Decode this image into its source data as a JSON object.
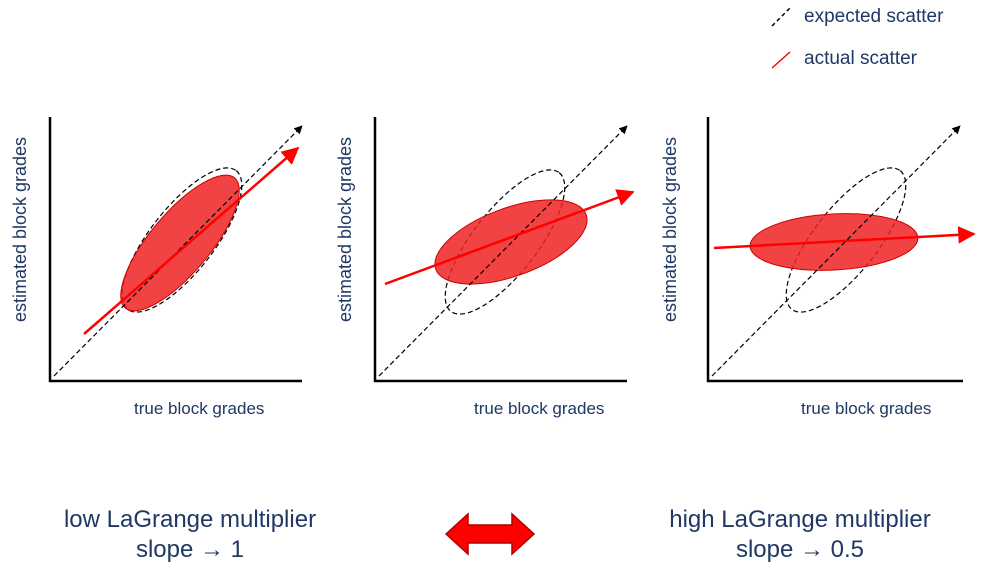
{
  "legend": {
    "expected_label": "expected scatter",
    "actual_label": "actual scatter"
  },
  "panels": [
    {
      "ylabel": "estimated block grades",
      "xlabel": "true block grades"
    },
    {
      "ylabel": "estimated block grades",
      "xlabel": "true block grades"
    },
    {
      "ylabel": "estimated block grades",
      "xlabel": "true block grades"
    }
  ],
  "captions": {
    "left_line1": "low LaGrange multiplier",
    "left_line2": "slope → 1",
    "right_line1": "high LaGrange multiplier",
    "right_line2": "slope → 0.5"
  },
  "colors": {
    "text": "#1f3864",
    "actual": "#ff0000",
    "ellipse_fill": "#ee2222",
    "expected": "#000000"
  }
}
